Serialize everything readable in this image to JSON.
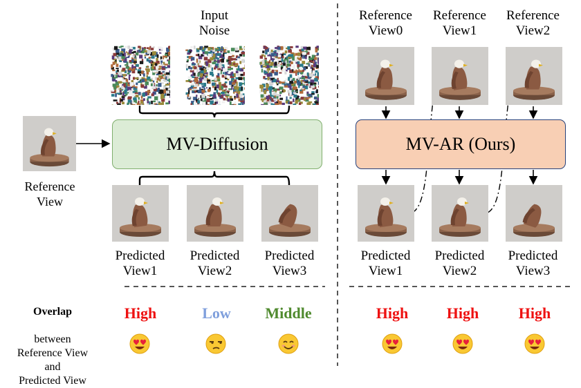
{
  "left": {
    "input_noise_label": "Input\nNoise",
    "model_label": "MV-Diffusion",
    "reference_label": "Reference\nView",
    "predicted_labels": [
      "Predicted\nView1",
      "Predicted\nView2",
      "Predicted\nView3"
    ],
    "overlap": [
      {
        "text": "High",
        "color": "#ee1111",
        "emoji": "heart-eyes"
      },
      {
        "text": "Low",
        "color": "#7f9fdc",
        "emoji": "unamused"
      },
      {
        "text": "Middle",
        "color": "#4f8a2e",
        "emoji": "smiling"
      }
    ]
  },
  "right": {
    "model_label": "MV-AR (Ours)",
    "reference_labels": [
      "Reference\nView0",
      "Reference\nView1",
      "Reference\nView2"
    ],
    "predicted_labels": [
      "Predicted\nView1",
      "Predicted\nView2",
      "Predicted\nView3"
    ],
    "overlap": [
      {
        "text": "High",
        "color": "#ee1111",
        "emoji": "heart-eyes"
      },
      {
        "text": "High",
        "color": "#ee1111",
        "emoji": "heart-eyes"
      },
      {
        "text": "High",
        "color": "#ee1111",
        "emoji": "heart-eyes"
      }
    ]
  },
  "overlap_label": {
    "bold": "Overlap",
    "rest": "between\nReference View\nand\nPredicted View"
  },
  "colors": {
    "diffusion_fill": "#dcecd6",
    "diffusion_border": "#7fae6c",
    "ar_fill": "#f8cfb4",
    "ar_border": "#26407a"
  }
}
